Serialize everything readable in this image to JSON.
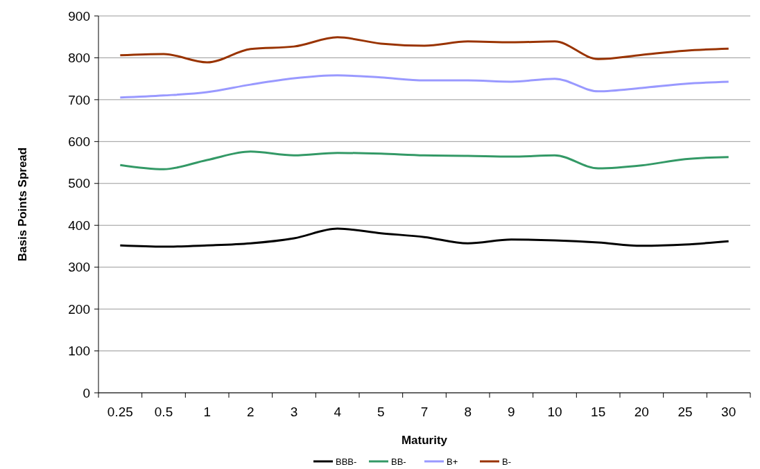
{
  "chart_data": {
    "type": "line",
    "xlabel": "Maturity",
    "ylabel": "Basis Points Spread",
    "categories": [
      "0.25",
      "0.5",
      "1",
      "2",
      "3",
      "4",
      "5",
      "7",
      "8",
      "9",
      "10",
      "15",
      "20",
      "25",
      "30"
    ],
    "ylim": [
      0,
      900
    ],
    "yticks": [
      0,
      100,
      200,
      300,
      400,
      500,
      600,
      700,
      800,
      900
    ],
    "grid": "y",
    "legend": "bottom",
    "line_style": "solid",
    "marker": "none",
    "series": [
      {
        "name": "BBB-",
        "color": "#000000",
        "values": [
          352,
          349,
          352,
          357,
          369,
          392,
          381,
          372,
          357,
          366,
          364,
          359,
          351,
          354,
          362
        ]
      },
      {
        "name": "BB-",
        "color": "#339966",
        "values": [
          544,
          534,
          556,
          576,
          567,
          573,
          571,
          567,
          566,
          564,
          567,
          536,
          543,
          558,
          563
        ]
      },
      {
        "name": "B+",
        "color": "#9999ff",
        "values": [
          705,
          710,
          718,
          736,
          751,
          758,
          753,
          746,
          746,
          743,
          750,
          720,
          728,
          738,
          743
        ]
      },
      {
        "name": "B-",
        "color": "#993300",
        "values": [
          806,
          809,
          789,
          821,
          827,
          849,
          834,
          829,
          839,
          837,
          839,
          797,
          807,
          817,
          822
        ]
      }
    ]
  }
}
